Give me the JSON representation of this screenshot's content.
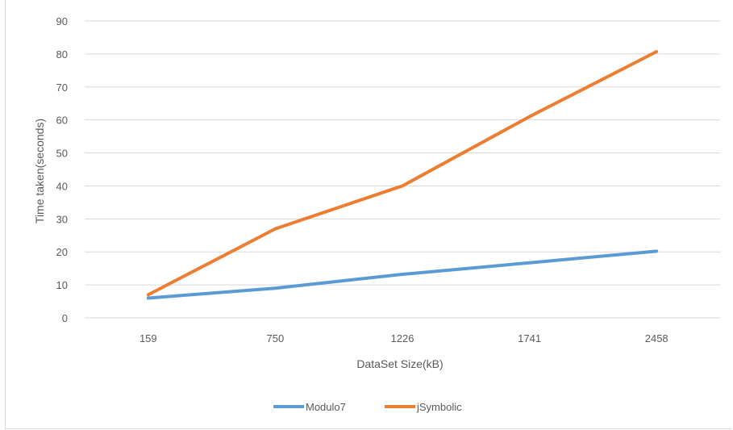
{
  "chart_data": {
    "type": "line",
    "title": "",
    "xlabel": "DataSet Size(kB)",
    "ylabel": "Time taken(seconds)",
    "categories": [
      "159",
      "750",
      "1226",
      "1741",
      "2458"
    ],
    "ylim": [
      0,
      90
    ],
    "yticks": [
      "0",
      "10",
      "20",
      "30",
      "40",
      "50",
      "60",
      "70",
      "80",
      "90"
    ],
    "grid": true,
    "legend_position": "bottom",
    "series": [
      {
        "name": "Modulo7",
        "values": [
          6,
          9,
          13.2,
          16.7,
          20.2
        ],
        "color": "#5B9BD5"
      },
      {
        "name": "jSymbolic",
        "values": [
          7,
          27,
          40,
          61,
          80.7
        ],
        "color": "#ED7D31"
      }
    ]
  },
  "colors": {
    "gridline": "#d9d9d9",
    "axis_text": "#595959"
  }
}
